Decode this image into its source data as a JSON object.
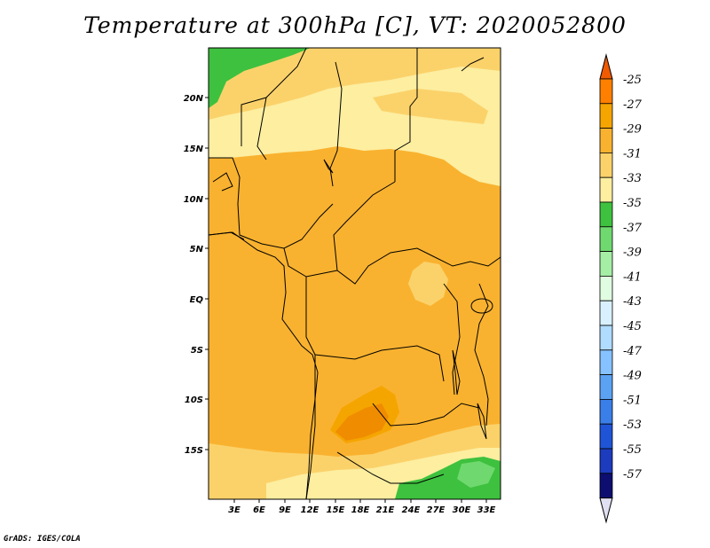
{
  "title": "Temperature at 300hPa [C], VT: 2020052800",
  "credit": "GrADS: IGES/COLA",
  "lat_labels": [
    "20N",
    "15N",
    "10N",
    "5N",
    "EQ",
    "5S",
    "10S",
    "15S"
  ],
  "lon_labels": [
    "3E",
    "6E",
    "9E",
    "12E",
    "15E",
    "18E",
    "21E",
    "24E",
    "27E",
    "30E",
    "33E"
  ],
  "colorbar": {
    "levels": [
      "-25",
      "-27",
      "-29",
      "-31",
      "-33",
      "-35",
      "-37",
      "-39",
      "-41",
      "-43",
      "-45",
      "-47",
      "-49",
      "-51",
      "-53",
      "-55",
      "-57"
    ],
    "colors": [
      "#f05a00",
      "#ff8000",
      "#f5a500",
      "#f9b22f",
      "#fbd26a",
      "#fdeea0",
      "#3ec13e",
      "#6fd96f",
      "#a5eea5",
      "#e1fde1",
      "#d9f1ff",
      "#b0dcff",
      "#86c2ff",
      "#5ca2f3",
      "#3a7fe8",
      "#1f54d6",
      "#1c3bbd",
      "#0d0e70",
      "#e0e0f2"
    ]
  },
  "map": {
    "domain": "Central Africa",
    "lat_range": [
      "17.5S",
      "23N"
    ],
    "lon_range": [
      "0E",
      "34.5E"
    ],
    "field_colors": {
      "green": "#3ec13e",
      "light_green": "#6fd96f",
      "pale_yellow": "#fdeea0",
      "yellow": "#fbd26a",
      "orange": "#f9b22f",
      "dark_orange": "#f5a500"
    }
  }
}
